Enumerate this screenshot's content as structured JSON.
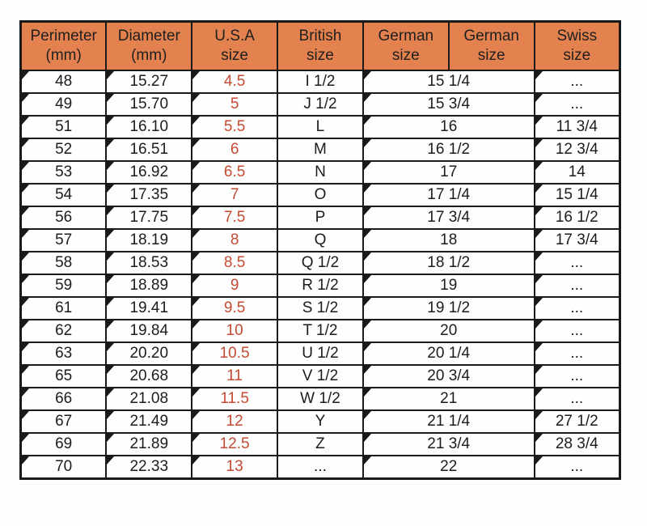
{
  "colors": {
    "header_bg": "#E3824F",
    "usa_text": "#C44A32",
    "border": "#1A1A1A",
    "text": "#1C1C1C"
  },
  "chart_data": {
    "type": "table",
    "layout": {
      "header_rows": 1,
      "german_columns_merged_in_body": true,
      "grid": true
    },
    "headers": [
      {
        "line1": "Perimeter",
        "line2": "(mm)"
      },
      {
        "line1": "Diameter",
        "line2": "(mm)"
      },
      {
        "line1": "U.S.A",
        "line2": "size"
      },
      {
        "line1": "British",
        "line2": "size"
      },
      {
        "line1": "German",
        "line2": "size"
      },
      {
        "line1": "German",
        "line2": "size"
      },
      {
        "line1": "Swiss",
        "line2": "size"
      }
    ],
    "column_keys": [
      "perimeter_mm",
      "diameter_mm",
      "usa_size",
      "british_size",
      "german_size",
      "swiss_size"
    ],
    "rows": [
      [
        "48",
        "15.27",
        "4.5",
        "I 1/2",
        "15 1/4",
        "..."
      ],
      [
        "49",
        "15.70",
        "5",
        "J 1/2",
        "15 3/4",
        "..."
      ],
      [
        "51",
        "16.10",
        "5.5",
        "L",
        "16",
        "11 3/4"
      ],
      [
        "52",
        "16.51",
        "6",
        "M",
        "16 1/2",
        "12 3/4"
      ],
      [
        "53",
        "16.92",
        "6.5",
        "N",
        "17",
        "14"
      ],
      [
        "54",
        "17.35",
        "7",
        "O",
        "17 1/4",
        "15 1/4"
      ],
      [
        "56",
        "17.75",
        "7.5",
        "P",
        "17 3/4",
        "16 1/2"
      ],
      [
        "57",
        "18.19",
        "8",
        "Q",
        "18",
        "17 3/4"
      ],
      [
        "58",
        "18.53",
        "8.5",
        "Q 1/2",
        "18 1/2",
        "..."
      ],
      [
        "59",
        "18.89",
        "9",
        "R 1/2",
        "19",
        "..."
      ],
      [
        "61",
        "19.41",
        "9.5",
        "S 1/2",
        "19 1/2",
        "..."
      ],
      [
        "62",
        "19.84",
        "10",
        "T 1/2",
        "20",
        "..."
      ],
      [
        "63",
        "20.20",
        "10.5",
        "U 1/2",
        "20 1/4",
        "..."
      ],
      [
        "65",
        "20.68",
        "11",
        "V 1/2",
        "20 3/4",
        "..."
      ],
      [
        "66",
        "21.08",
        "11.5",
        "W 1/2",
        "21",
        "..."
      ],
      [
        "67",
        "21.49",
        "12",
        "Y",
        "21 1/4",
        "27 1/2"
      ],
      [
        "69",
        "21.89",
        "12.5",
        "Z",
        "21 3/4",
        "28 3/4"
      ],
      [
        "70",
        "22.33",
        "13",
        "...",
        "22",
        "..."
      ]
    ]
  }
}
